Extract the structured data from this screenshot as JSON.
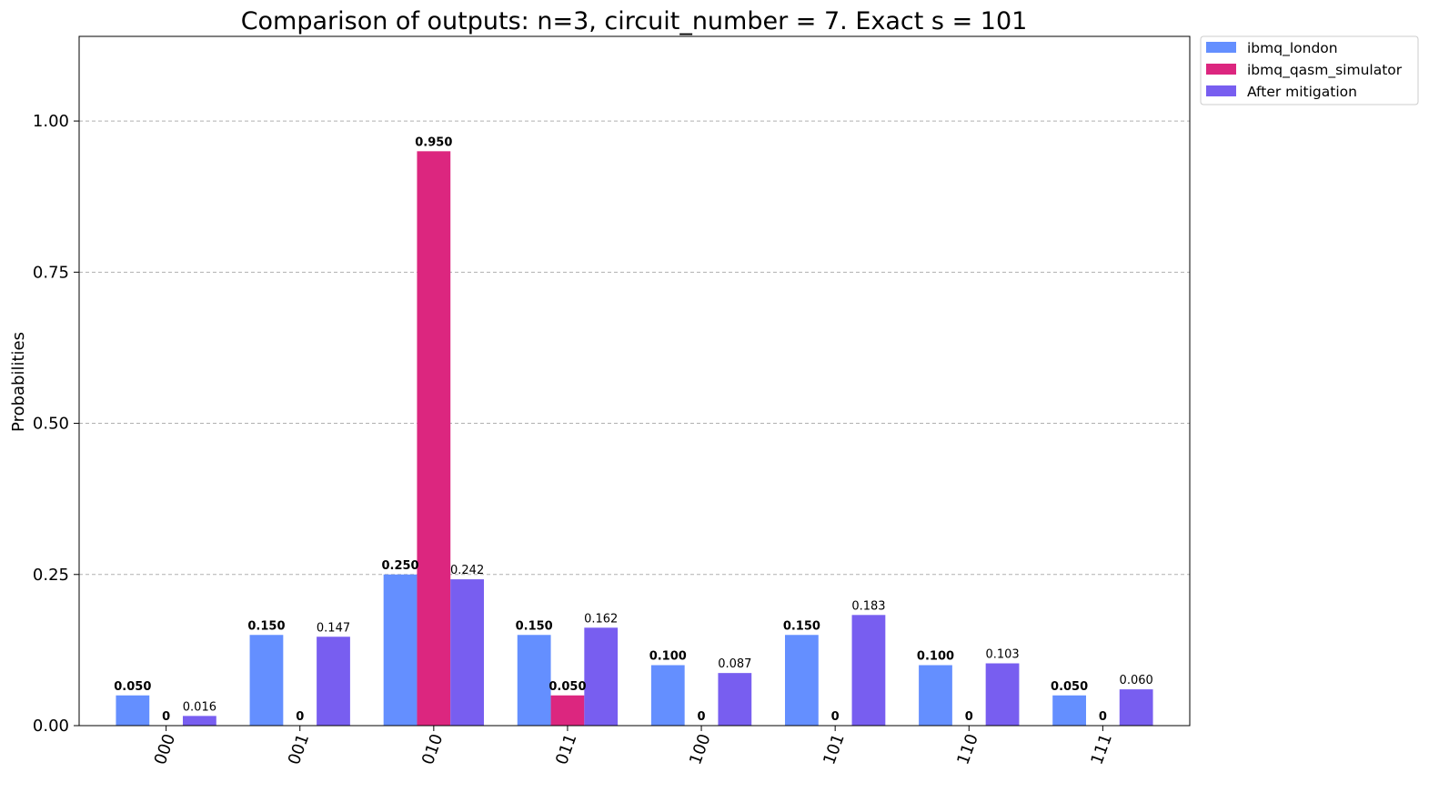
{
  "chart_data": {
    "type": "bar",
    "title": "Comparison of outputs: n=3, circuit_number = 7. Exact s = 101",
    "xlabel": "",
    "ylabel": "Probabilities",
    "ylim": [
      0,
      1.14
    ],
    "yticks": [
      "0.00",
      "0.25",
      "0.50",
      "0.75",
      "1.00"
    ],
    "grid": "y-dashed",
    "legend_position": "outside-top-right",
    "categories": [
      "000",
      "001",
      "010",
      "011",
      "100",
      "101",
      "110",
      "111"
    ],
    "series": [
      {
        "name": "ibmq_london",
        "color": "#648fff",
        "values": [
          0.05,
          0.15,
          0.25,
          0.15,
          0.1,
          0.15,
          0.1,
          0.05
        ],
        "labels": [
          "0.050",
          "0.150",
          "0.250",
          "0.150",
          "0.100",
          "0.150",
          "0.100",
          "0.050"
        ]
      },
      {
        "name": "ibmq_qasm_simulator",
        "color": "#dc267f",
        "values": [
          0,
          0,
          0.95,
          0.05,
          0,
          0,
          0,
          0
        ],
        "labels": [
          "0",
          "0",
          "0.950",
          "0.050",
          "0",
          "0",
          "0",
          "0"
        ]
      },
      {
        "name": "After mitigation",
        "color": "#785ef0",
        "values": [
          0.016,
          0.147,
          0.242,
          0.162,
          0.087,
          0.183,
          0.103,
          0.06
        ],
        "labels": [
          "0.016",
          "0.147",
          "0.242",
          "0.162",
          "0.087",
          "0.183",
          "0.103",
          "0.060"
        ]
      }
    ]
  }
}
